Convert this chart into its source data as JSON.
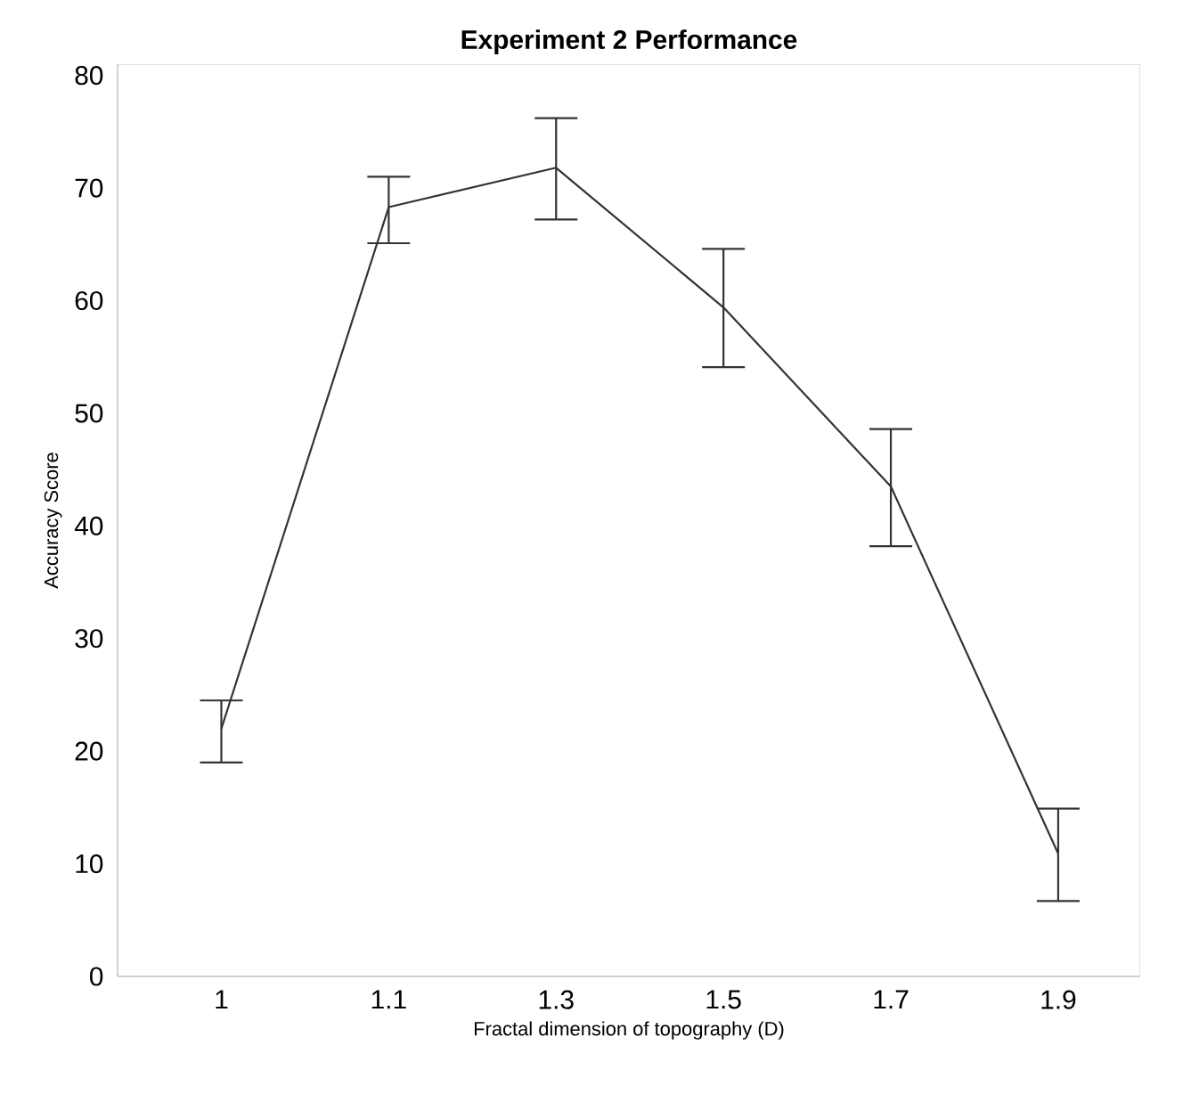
{
  "chart_data": {
    "type": "line",
    "title": "Experiment 2 Performance",
    "xlabel": "Fractal dimension of topography (D)",
    "ylabel": "Accuracy Score",
    "categories": [
      "1",
      "1.1",
      "1.3",
      "1.5",
      "1.7",
      "1.9"
    ],
    "values": [
      22,
      68.3,
      71.8,
      59.4,
      43.5,
      10.9
    ],
    "errors": [
      [
        19,
        24.5
      ],
      [
        65.1,
        71
      ],
      [
        67.2,
        76.2
      ],
      [
        54.1,
        64.6
      ],
      [
        38.2,
        48.6
      ],
      [
        6.7,
        14.9
      ]
    ],
    "color": "#333333",
    "marker": "none",
    "line_style": "solid",
    "ylim": [
      0,
      81
    ],
    "yticks": [
      0,
      10,
      20,
      30,
      40,
      50,
      60,
      70,
      80
    ]
  }
}
